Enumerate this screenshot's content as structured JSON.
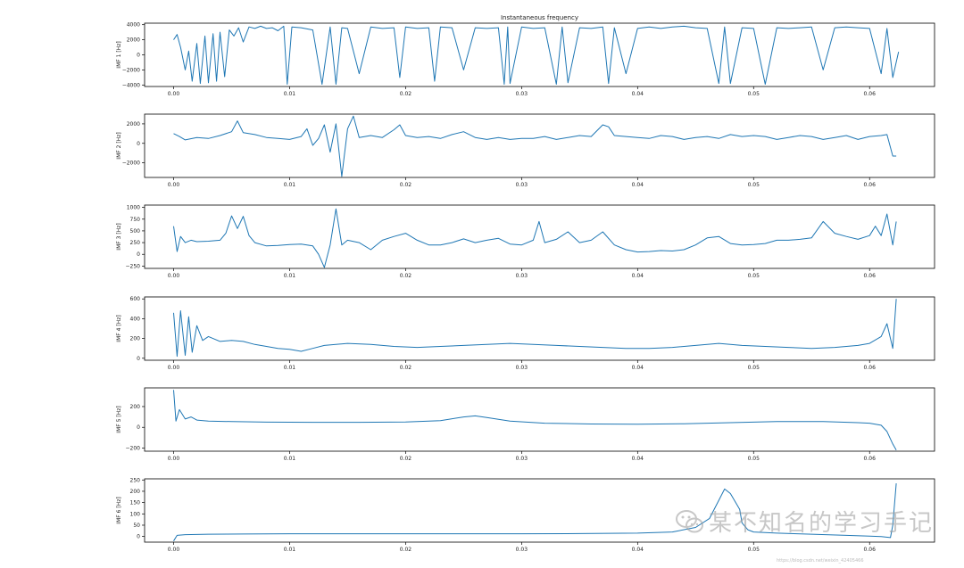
{
  "chart_data": [
    {
      "type": "line",
      "title": "Instantaneous frequency",
      "ylabel": "IMF 1 [Hz]",
      "xlim": [
        -0.0025,
        0.0656
      ],
      "ylim": [
        -4200,
        4200
      ],
      "xticks": [
        "0.00",
        "0.01",
        "0.02",
        "0.03",
        "0.04",
        "0.05",
        "0.06"
      ],
      "yticks": [
        -4000,
        -2000,
        0,
        2000,
        4000
      ],
      "ytick_labels": [
        "−4000",
        "−2000",
        "0",
        "2000",
        "4000"
      ],
      "color": "#1f77b4",
      "x": [
        0.0,
        0.0003,
        0.0006,
        0.001,
        0.0013,
        0.0016,
        0.002,
        0.0023,
        0.0027,
        0.003,
        0.0034,
        0.0037,
        0.004,
        0.0044,
        0.0048,
        0.0052,
        0.0056,
        0.006,
        0.0065,
        0.007,
        0.0075,
        0.008,
        0.0085,
        0.009,
        0.0095,
        0.0098,
        0.0102,
        0.011,
        0.012,
        0.0128,
        0.0135,
        0.014,
        0.0145,
        0.015,
        0.016,
        0.017,
        0.018,
        0.019,
        0.0195,
        0.02,
        0.021,
        0.022,
        0.0225,
        0.023,
        0.024,
        0.025,
        0.026,
        0.027,
        0.028,
        0.0285,
        0.0288,
        0.029,
        0.03,
        0.031,
        0.032,
        0.033,
        0.0335,
        0.034,
        0.035,
        0.036,
        0.037,
        0.0375,
        0.038,
        0.039,
        0.04,
        0.041,
        0.042,
        0.043,
        0.044,
        0.045,
        0.046,
        0.047,
        0.0475,
        0.048,
        0.049,
        0.05,
        0.051,
        0.052,
        0.053,
        0.054,
        0.055,
        0.056,
        0.057,
        0.058,
        0.059,
        0.06,
        0.061,
        0.0615,
        0.062,
        0.0625
      ],
      "values": [
        2000,
        2700,
        1000,
        -2000,
        500,
        -3500,
        1500,
        -3800,
        2500,
        -3700,
        2800,
        -3500,
        3000,
        -2900,
        3300,
        2500,
        3600,
        1700,
        3700,
        3500,
        3800,
        3500,
        3600,
        3200,
        3800,
        -3900,
        3700,
        3600,
        3300,
        -3900,
        3700,
        -3900,
        3600,
        3500,
        -2500,
        3700,
        3500,
        3600,
        -3000,
        3700,
        3500,
        3600,
        -3500,
        3700,
        3600,
        -2000,
        3600,
        3500,
        3600,
        -3900,
        3700,
        -3800,
        3700,
        3500,
        3600,
        -3900,
        3700,
        -3700,
        3600,
        3500,
        3700,
        -3800,
        3600,
        -2500,
        3500,
        3700,
        3500,
        3700,
        3800,
        3600,
        3500,
        -3800,
        3700,
        -3800,
        3600,
        3500,
        -3900,
        3600,
        3500,
        3600,
        3700,
        -2000,
        3600,
        3700,
        3600,
        3500,
        -2500,
        3500,
        -3000,
        400
      ]
    },
    {
      "type": "line",
      "ylabel": "IMF 2 [Hz]",
      "xlim": [
        -0.0025,
        0.0656
      ],
      "ylim": [
        -3500,
        3000
      ],
      "xticks": [
        "0.00",
        "0.01",
        "0.02",
        "0.03",
        "0.04",
        "0.05",
        "0.06"
      ],
      "yticks": [
        -2000,
        0,
        2000
      ],
      "ytick_labels": [
        "−2000",
        "0",
        "2000"
      ],
      "color": "#1f77b4",
      "x": [
        0.0,
        0.0005,
        0.001,
        0.002,
        0.003,
        0.004,
        0.005,
        0.0055,
        0.006,
        0.007,
        0.008,
        0.009,
        0.01,
        0.011,
        0.0115,
        0.012,
        0.0125,
        0.013,
        0.0135,
        0.014,
        0.0145,
        0.015,
        0.0155,
        0.016,
        0.017,
        0.018,
        0.019,
        0.0195,
        0.02,
        0.021,
        0.022,
        0.023,
        0.024,
        0.025,
        0.026,
        0.027,
        0.028,
        0.029,
        0.03,
        0.031,
        0.032,
        0.033,
        0.034,
        0.035,
        0.036,
        0.037,
        0.0375,
        0.038,
        0.039,
        0.04,
        0.041,
        0.042,
        0.043,
        0.044,
        0.045,
        0.046,
        0.047,
        0.048,
        0.049,
        0.05,
        0.051,
        0.052,
        0.053,
        0.054,
        0.055,
        0.056,
        0.057,
        0.058,
        0.059,
        0.06,
        0.061,
        0.0615,
        0.062,
        0.0623
      ],
      "values": [
        1000,
        700,
        350,
        600,
        500,
        800,
        1200,
        2300,
        1100,
        900,
        600,
        500,
        400,
        700,
        1500,
        -200,
        500,
        1900,
        -900,
        2000,
        -3400,
        1500,
        2800,
        600,
        800,
        600,
        1400,
        1900,
        800,
        600,
        700,
        500,
        900,
        1200,
        600,
        400,
        600,
        400,
        500,
        500,
        700,
        400,
        600,
        800,
        700,
        1900,
        1700,
        800,
        700,
        600,
        500,
        800,
        700,
        400,
        600,
        700,
        500,
        900,
        700,
        800,
        700,
        400,
        600,
        800,
        700,
        400,
        600,
        800,
        400,
        700,
        800,
        900,
        -1300,
        -1300
      ]
    },
    {
      "type": "line",
      "ylabel": "IMF 3 [Hz]",
      "xlim": [
        -0.0025,
        0.0656
      ],
      "ylim": [
        -300,
        1050
      ],
      "xticks": [
        "0.00",
        "0.01",
        "0.02",
        "0.03",
        "0.04",
        "0.05",
        "0.06"
      ],
      "yticks": [
        -250,
        0,
        250,
        500,
        750,
        1000
      ],
      "ytick_labels": [
        "−250",
        "0",
        "250",
        "500",
        "750",
        "1000"
      ],
      "color": "#1f77b4",
      "x": [
        0.0,
        0.0003,
        0.0006,
        0.001,
        0.0015,
        0.002,
        0.003,
        0.004,
        0.0045,
        0.005,
        0.0055,
        0.006,
        0.0065,
        0.007,
        0.008,
        0.009,
        0.01,
        0.011,
        0.012,
        0.0125,
        0.013,
        0.0135,
        0.014,
        0.0145,
        0.015,
        0.016,
        0.017,
        0.018,
        0.019,
        0.02,
        0.021,
        0.022,
        0.023,
        0.024,
        0.025,
        0.026,
        0.027,
        0.028,
        0.029,
        0.03,
        0.031,
        0.0315,
        0.032,
        0.033,
        0.034,
        0.035,
        0.036,
        0.037,
        0.038,
        0.039,
        0.04,
        0.041,
        0.042,
        0.043,
        0.044,
        0.045,
        0.046,
        0.047,
        0.048,
        0.049,
        0.05,
        0.051,
        0.052,
        0.053,
        0.054,
        0.055,
        0.056,
        0.057,
        0.058,
        0.059,
        0.06,
        0.0605,
        0.061,
        0.0615,
        0.062,
        0.0623
      ],
      "values": [
        600,
        60,
        380,
        250,
        300,
        270,
        280,
        300,
        450,
        820,
        550,
        810,
        400,
        250,
        180,
        190,
        210,
        220,
        180,
        0,
        -280,
        200,
        970,
        200,
        300,
        250,
        100,
        300,
        380,
        450,
        300,
        200,
        200,
        250,
        330,
        250,
        300,
        340,
        220,
        200,
        300,
        700,
        250,
        320,
        480,
        250,
        300,
        480,
        200,
        100,
        50,
        60,
        80,
        70,
        100,
        200,
        350,
        380,
        230,
        200,
        210,
        230,
        300,
        300,
        320,
        350,
        700,
        450,
        380,
        320,
        400,
        600,
        400,
        860,
        200,
        700
      ]
    },
    {
      "type": "line",
      "ylabel": "IMF 4 [Hz]",
      "xlim": [
        -0.0025,
        0.0656
      ],
      "ylim": [
        -20,
        620
      ],
      "xticks": [
        "0.00",
        "0.01",
        "0.02",
        "0.03",
        "0.04",
        "0.05",
        "0.06"
      ],
      "yticks": [
        0,
        200,
        400,
        600
      ],
      "ytick_labels": [
        "0",
        "200",
        "400",
        "600"
      ],
      "color": "#1f77b4",
      "x": [
        0.0,
        0.0003,
        0.0006,
        0.001,
        0.0013,
        0.0016,
        0.002,
        0.0025,
        0.003,
        0.004,
        0.005,
        0.006,
        0.007,
        0.008,
        0.009,
        0.01,
        0.011,
        0.012,
        0.013,
        0.015,
        0.017,
        0.019,
        0.021,
        0.023,
        0.025,
        0.027,
        0.029,
        0.031,
        0.033,
        0.035,
        0.037,
        0.039,
        0.041,
        0.043,
        0.045,
        0.047,
        0.049,
        0.051,
        0.053,
        0.055,
        0.057,
        0.059,
        0.06,
        0.061,
        0.0615,
        0.062,
        0.0623
      ],
      "values": [
        460,
        20,
        480,
        30,
        420,
        60,
        330,
        180,
        220,
        170,
        180,
        170,
        140,
        120,
        100,
        90,
        70,
        100,
        130,
        150,
        140,
        120,
        110,
        120,
        130,
        140,
        150,
        140,
        130,
        120,
        110,
        100,
        100,
        110,
        130,
        150,
        130,
        120,
        110,
        100,
        110,
        130,
        150,
        220,
        350,
        100,
        600
      ]
    },
    {
      "type": "line",
      "ylabel": "IMF 5 [Hz]",
      "xlim": [
        -0.0025,
        0.0656
      ],
      "ylim": [
        -230,
        380
      ],
      "xticks": [
        "0.00",
        "0.01",
        "0.02",
        "0.03",
        "0.04",
        "0.05",
        "0.06"
      ],
      "yticks": [
        -200,
        0,
        200
      ],
      "ytick_labels": [
        "−200",
        "0",
        "200"
      ],
      "color": "#1f77b4",
      "x": [
        0.0,
        0.0002,
        0.0005,
        0.001,
        0.0015,
        0.002,
        0.003,
        0.005,
        0.008,
        0.012,
        0.016,
        0.02,
        0.023,
        0.025,
        0.026,
        0.027,
        0.029,
        0.032,
        0.036,
        0.04,
        0.044,
        0.048,
        0.052,
        0.056,
        0.059,
        0.06,
        0.061,
        0.0615,
        0.062,
        0.0623
      ],
      "values": [
        360,
        60,
        170,
        80,
        100,
        70,
        60,
        55,
        50,
        48,
        48,
        52,
        65,
        100,
        110,
        95,
        60,
        40,
        32,
        30,
        35,
        45,
        55,
        55,
        45,
        40,
        20,
        -40,
        -160,
        -220
      ]
    },
    {
      "type": "line",
      "ylabel": "IMF 6 [Hz]",
      "xlim": [
        -0.0025,
        0.0656
      ],
      "ylim": [
        -25,
        255
      ],
      "xticks": [
        "0.00",
        "0.01",
        "0.02",
        "0.03",
        "0.04",
        "0.05",
        "0.06"
      ],
      "yticks": [
        0,
        50,
        100,
        150,
        200,
        250
      ],
      "ytick_labels": [
        "0",
        "50",
        "100",
        "150",
        "200",
        "250"
      ],
      "color": "#1f77b4",
      "x": [
        0.0,
        0.0003,
        0.001,
        0.003,
        0.006,
        0.01,
        0.015,
        0.02,
        0.025,
        0.03,
        0.035,
        0.04,
        0.043,
        0.045,
        0.0462,
        0.047,
        0.0475,
        0.048,
        0.0488,
        0.049,
        0.0495,
        0.05,
        0.052,
        0.055,
        0.058,
        0.06,
        0.061,
        0.0618,
        0.062,
        0.0623
      ],
      "values": [
        -20,
        5,
        8,
        10,
        11,
        12,
        12,
        12,
        12,
        12,
        13,
        15,
        20,
        40,
        80,
        160,
        210,
        190,
        120,
        60,
        30,
        20,
        15,
        10,
        5,
        2,
        0,
        -5,
        50,
        235
      ]
    }
  ],
  "watermark": {
    "text": "某不知名的学习手记",
    "url": "https://blog.csdn.net/weixin_42405466",
    "icon": "wechat-icon"
  }
}
